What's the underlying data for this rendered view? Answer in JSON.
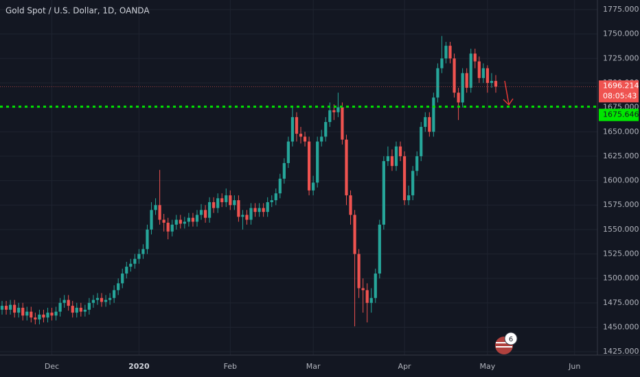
{
  "chart_data": {
    "type": "candlestick",
    "title": "Gold Spot / U.S. Dollar, 1D, OANDA",
    "up_color": "#26a69a",
    "down_color": "#ef5350",
    "open": [
      1468,
      1472,
      1468,
      1473,
      1465,
      1470,
      1462,
      1466,
      1460,
      1458,
      1463,
      1460,
      1465,
      1462,
      1466,
      1475,
      1478,
      1472,
      1465,
      1470,
      1466,
      1468,
      1475,
      1478,
      1480,
      1476,
      1478,
      1480,
      1488,
      1495,
      1505,
      1512,
      1515,
      1520,
      1525,
      1530,
      1550,
      1570,
      1575,
      1560,
      1557,
      1548,
      1555,
      1560,
      1556,
      1558,
      1562,
      1558,
      1565,
      1570,
      1562,
      1578,
      1572,
      1582,
      1578,
      1585,
      1575,
      1580,
      1563,
      1565,
      1560,
      1572,
      1568,
      1572,
      1568,
      1578,
      1580,
      1587,
      1602,
      1618,
      1640,
      1665,
      1648,
      1645,
      1640,
      1590,
      1598,
      1640,
      1645,
      1660,
      1672,
      1670,
      1675,
      1642,
      1585,
      1565,
      1525,
      1490,
      1488,
      1475,
      1480,
      1505,
      1555,
      1620,
      1625,
      1615,
      1635,
      1625,
      1580,
      1585,
      1610,
      1625,
      1655,
      1665,
      1650,
      1685,
      1715,
      1725,
      1738,
      1725,
      1690,
      1680,
      1710,
      1695,
      1730,
      1722,
      1705,
      1715,
      1700,
      1702
    ],
    "high": [
      1477,
      1477,
      1478,
      1478,
      1475,
      1475,
      1471,
      1471,
      1465,
      1468,
      1468,
      1470,
      1470,
      1471,
      1480,
      1483,
      1483,
      1477,
      1475,
      1475,
      1473,
      1480,
      1483,
      1485,
      1485,
      1483,
      1485,
      1493,
      1500,
      1510,
      1517,
      1520,
      1525,
      1530,
      1535,
      1555,
      1578,
      1582,
      1611,
      1566,
      1562,
      1560,
      1565,
      1565,
      1563,
      1567,
      1567,
      1570,
      1576,
      1575,
      1583,
      1583,
      1587,
      1587,
      1592,
      1590,
      1585,
      1585,
      1570,
      1570,
      1577,
      1577,
      1577,
      1577,
      1583,
      1585,
      1592,
      1607,
      1623,
      1645,
      1675,
      1670,
      1655,
      1650,
      1645,
      1605,
      1645,
      1652,
      1665,
      1680,
      1678,
      1690,
      1680,
      1647,
      1590,
      1570,
      1530,
      1500,
      1495,
      1490,
      1510,
      1560,
      1625,
      1635,
      1632,
      1640,
      1640,
      1630,
      1595,
      1615,
      1630,
      1660,
      1670,
      1670,
      1690,
      1720,
      1748,
      1742,
      1742,
      1730,
      1695,
      1715,
      1715,
      1735,
      1735,
      1727,
      1720,
      1718,
      1710,
      1708
    ],
    "low": [
      1463,
      1463,
      1463,
      1460,
      1460,
      1457,
      1457,
      1455,
      1453,
      1453,
      1455,
      1455,
      1457,
      1457,
      1461,
      1470,
      1467,
      1460,
      1460,
      1461,
      1461,
      1463,
      1470,
      1473,
      1471,
      1471,
      1473,
      1475,
      1483,
      1490,
      1500,
      1507,
      1510,
      1515,
      1520,
      1525,
      1545,
      1565,
      1555,
      1548,
      1540,
      1543,
      1550,
      1551,
      1551,
      1553,
      1553,
      1553,
      1560,
      1557,
      1557,
      1567,
      1567,
      1573,
      1573,
      1570,
      1570,
      1558,
      1550,
      1555,
      1555,
      1563,
      1563,
      1563,
      1563,
      1573,
      1575,
      1582,
      1597,
      1613,
      1635,
      1640,
      1638,
      1635,
      1585,
      1585,
      1593,
      1635,
      1640,
      1655,
      1662,
      1665,
      1637,
      1575,
      1555,
      1451,
      1480,
      1465,
      1455,
      1465,
      1475,
      1500,
      1550,
      1615,
      1610,
      1610,
      1620,
      1575,
      1575,
      1580,
      1605,
      1620,
      1650,
      1645,
      1645,
      1680,
      1710,
      1720,
      1720,
      1685,
      1662,
      1675,
      1690,
      1690,
      1715,
      1700,
      1700,
      1690,
      1695,
      1690
    ],
    "close": [
      1472,
      1468,
      1473,
      1465,
      1470,
      1462,
      1466,
      1460,
      1458,
      1463,
      1460,
      1465,
      1462,
      1466,
      1475,
      1478,
      1472,
      1465,
      1470,
      1466,
      1468,
      1475,
      1478,
      1480,
      1476,
      1478,
      1480,
      1488,
      1495,
      1505,
      1512,
      1515,
      1520,
      1525,
      1530,
      1550,
      1570,
      1575,
      1560,
      1557,
      1548,
      1555,
      1560,
      1556,
      1558,
      1562,
      1558,
      1565,
      1570,
      1562,
      1578,
      1572,
      1582,
      1578,
      1585,
      1575,
      1580,
      1563,
      1565,
      1560,
      1572,
      1568,
      1572,
      1568,
      1578,
      1580,
      1587,
      1602,
      1618,
      1640,
      1665,
      1648,
      1645,
      1640,
      1590,
      1598,
      1640,
      1645,
      1660,
      1672,
      1670,
      1675,
      1642,
      1585,
      1565,
      1525,
      1490,
      1488,
      1475,
      1480,
      1505,
      1555,
      1620,
      1625,
      1615,
      1635,
      1625,
      1580,
      1585,
      1610,
      1625,
      1655,
      1665,
      1650,
      1685,
      1715,
      1725,
      1738,
      1725,
      1690,
      1680,
      1710,
      1695,
      1730,
      1722,
      1705,
      1715,
      1700,
      1702,
      1696.214
    ],
    "xlim": [
      -0.5,
      143.5
    ],
    "xticks": [
      {
        "value": 12,
        "label": "Dec"
      },
      {
        "value": 33,
        "label": "2020"
      },
      {
        "value": 55,
        "label": "Feb"
      },
      {
        "value": 75,
        "label": "Mar"
      },
      {
        "value": 97,
        "label": "Apr"
      },
      {
        "value": 117,
        "label": "May"
      },
      {
        "value": 138,
        "label": "Jun"
      }
    ],
    "ylim": [
      1421.6,
      1784.8
    ],
    "yticks": [
      {
        "value": 1425,
        "label": "1425.000"
      },
      {
        "value": 1450,
        "label": "1450.000"
      },
      {
        "value": 1475,
        "label": "1475.000"
      },
      {
        "value": 1500,
        "label": "1500.000"
      },
      {
        "value": 1525,
        "label": "1525.000"
      },
      {
        "value": 1550,
        "label": "1550.000"
      },
      {
        "value": 1575,
        "label": "1575.000"
      },
      {
        "value": 1600,
        "label": "1600.000"
      },
      {
        "value": 1625,
        "label": "1625.000"
      },
      {
        "value": 1650,
        "label": "1650.000"
      },
      {
        "value": 1675,
        "label": "1675.000"
      },
      {
        "value": 1700,
        "label": "1700.000"
      },
      {
        "value": 1725,
        "label": "1725.000"
      },
      {
        "value": 1750,
        "label": "1750.000"
      },
      {
        "value": 1775,
        "label": "1775.000"
      }
    ],
    "grid": true,
    "last_price": 1696.214,
    "last_price_color": "#ef5350",
    "countdown": "08:05:43",
    "level": 1675.646,
    "level_color": "#00e600",
    "events_badge": "6"
  }
}
